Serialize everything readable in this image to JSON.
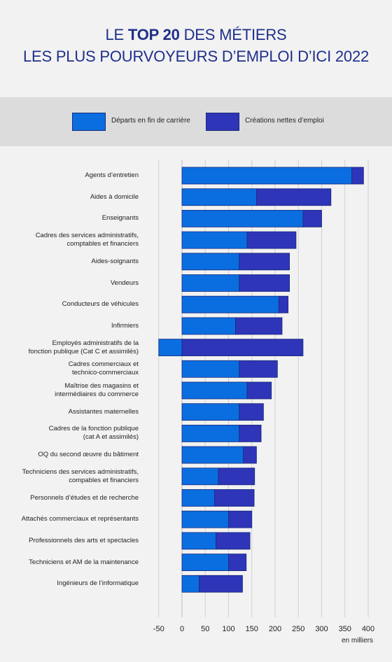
{
  "title": {
    "line1_pre": "LE ",
    "line1_bold": "TOP 20",
    "line1_post": " DES MÉTIERS",
    "line2": "LES PLUS POURVOYEURS D’EMPLOI D’ICI 2022"
  },
  "colors": {
    "departs": "#0a6ee0",
    "creations": "#2e35b8",
    "background": "#f2f2f2",
    "legend_band": "#dcdcdc",
    "title": "#1f2f8a",
    "grid": "#cfcfcf"
  },
  "chart_data": {
    "type": "bar",
    "orientation": "horizontal",
    "stacked": true,
    "unit_label": "en milliers",
    "xlim": [
      -50,
      400
    ],
    "xticks": [
      -50,
      0,
      50,
      100,
      150,
      200,
      250,
      300,
      350,
      400
    ],
    "grid": true,
    "legend_position": "top",
    "categories": [
      "Agents d’entretien",
      "Aides à domicile",
      "Enseignants",
      "Cadres des services administratifs,\ncomptables et financiers",
      "Aides-soignants",
      "Vendeurs",
      "Conducteurs de véhicules",
      "Infirmiers",
      "Employés administratifs de la\nfonction publique (Cat C et assimilés)",
      "Cadres commerciaux et\ntechnico-commerciaux",
      "Maîtrise des magasins et\nintermédiaires du commerce",
      "Assistantes maternelles",
      "Cadres de la fonction publique\n(cat A et assimilés)",
      "OQ du second œuvre du bâtiment",
      "Techniciens des services administratifs,\ncompables et financiers",
      "Personnels d’études et de recherche",
      "Attachés commerciaux et représentants",
      "Professionnels des arts et spectacles",
      "Techniciens et AM de la maintenance",
      "Ingénieurs de l’informatique"
    ],
    "series": [
      {
        "name": "Départs en fin de carrière",
        "values": [
          365,
          160,
          260,
          140,
          123,
          123,
          208,
          115,
          -50,
          123,
          140,
          123,
          123,
          132,
          78,
          70,
          100,
          73,
          100,
          37
        ]
      },
      {
        "name": "Créations nettes d’emploi",
        "values": [
          25,
          160,
          40,
          105,
          108,
          108,
          20,
          100,
          260,
          82,
          52,
          52,
          47,
          28,
          78,
          85,
          50,
          73,
          38,
          93
        ]
      }
    ]
  }
}
